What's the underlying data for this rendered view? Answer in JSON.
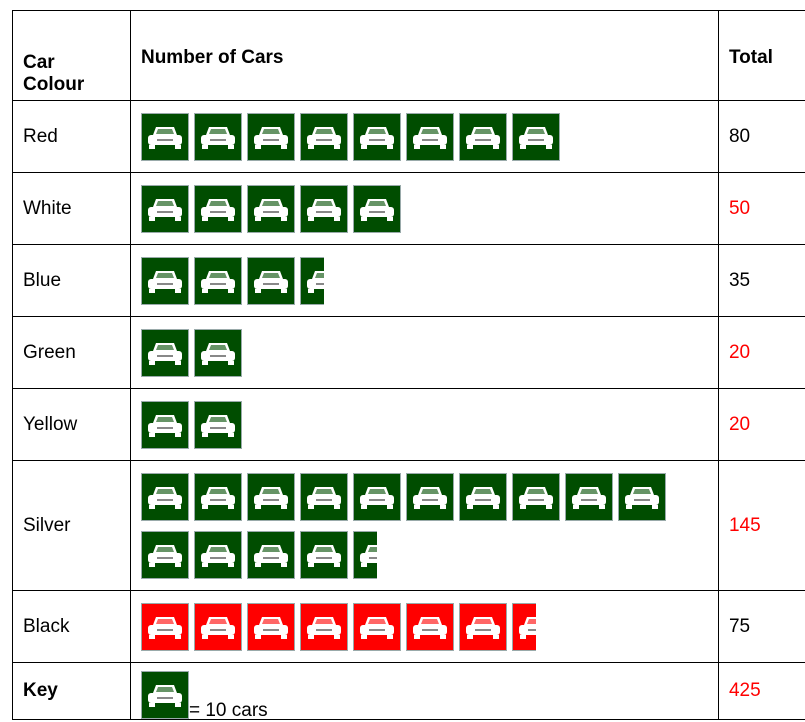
{
  "table": {
    "header": [
      "Car Colour",
      "Number of Cars",
      "Total"
    ],
    "rows": [
      {
        "colour": "Red",
        "total": 80,
        "total_color": "#000000",
        "icon_color": "#004d00"
      },
      {
        "colour": "White",
        "total": 50,
        "total_color": "#ff0000",
        "icon_color": "#004d00"
      },
      {
        "colour": "Blue",
        "total": 35,
        "total_color": "#000000",
        "icon_color": "#004d00"
      },
      {
        "colour": "Green",
        "total": 20,
        "total_color": "#ff0000",
        "icon_color": "#004d00"
      },
      {
        "colour": "Yellow",
        "total": 20,
        "total_color": "#ff0000",
        "icon_color": "#004d00"
      },
      {
        "colour": "Silver",
        "total": 145,
        "total_color": "#ff0000",
        "icon_color": "#004d00"
      },
      {
        "colour": "Black",
        "total": 75,
        "total_color": "#000000",
        "icon_color": "#ff0000"
      }
    ],
    "key": {
      "label": "Key",
      "unit_value": 10,
      "text": "= 10 cars",
      "total": 425,
      "total_color": "#ff0000",
      "icon_color": "#004d00"
    }
  }
}
